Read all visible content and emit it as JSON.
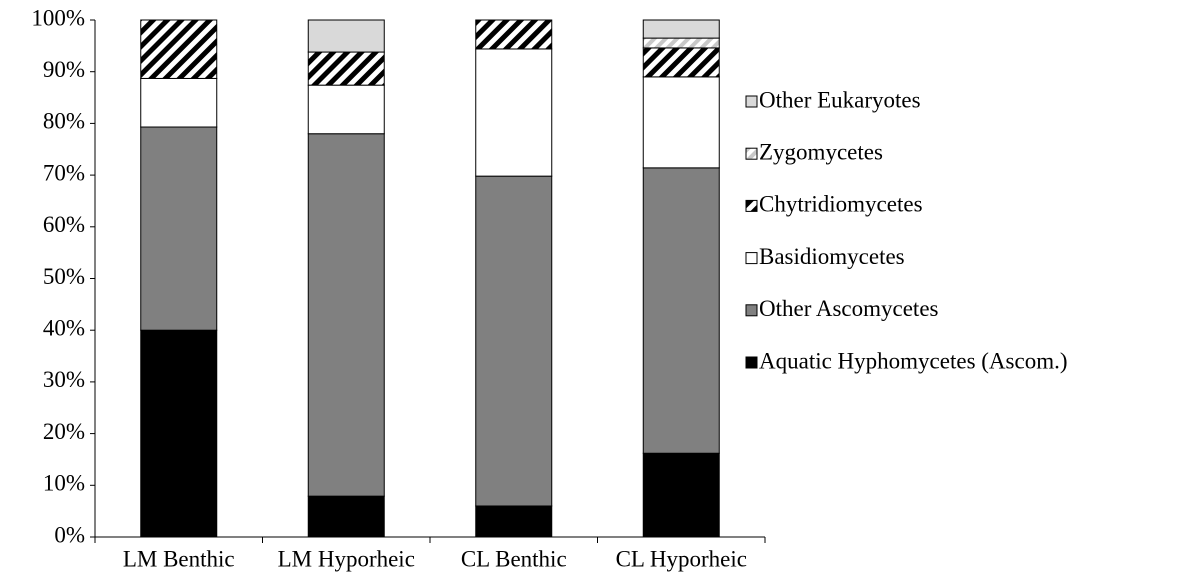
{
  "chart_data": {
    "type": "stacked_bar",
    "categories": [
      "LM Benthic",
      "LM Hyporheic",
      "CL Benthic",
      "CL Hyporheic"
    ],
    "series": [
      {
        "name": "Aquatic Hyphomycetes (Ascom.)",
        "color": "#000000",
        "values": [
          40,
          7.9,
          6,
          16.2
        ]
      },
      {
        "name": "Other Ascomycetes",
        "color": "#808080",
        "values": [
          39.3,
          70.1,
          63.8,
          55.2
        ]
      },
      {
        "name": "Basidiomycetes",
        "color": "#ffffff",
        "values": [
          9.4,
          9.4,
          24.6,
          17.6
        ]
      },
      {
        "name": "Chytridiomycetes",
        "color": "#000000",
        "pattern": "diagonal",
        "values": [
          11.3,
          6.4,
          5.6,
          5.6
        ]
      },
      {
        "name": "Zygomycetes",
        "color": "#c8c8c8",
        "pattern": "diagonal",
        "values": [
          0,
          0,
          0,
          1.9
        ]
      },
      {
        "name": "Other Eukaryotes",
        "color": "#d9d9d9",
        "values": [
          0,
          6.2,
          0,
          3.5
        ]
      }
    ],
    "ylim": [
      0,
      100
    ],
    "yticks": [
      {
        "value": 0,
        "label": "0%"
      },
      {
        "value": 10,
        "label": "10%"
      },
      {
        "value": 20,
        "label": "20%"
      },
      {
        "value": 30,
        "label": "30%"
      },
      {
        "value": 40,
        "label": "40%"
      },
      {
        "value": 50,
        "label": "50%"
      },
      {
        "value": 60,
        "label": "60%"
      },
      {
        "value": 70,
        "label": "70%"
      },
      {
        "value": 80,
        "label": "80%"
      },
      {
        "value": 90,
        "label": "90%"
      },
      {
        "value": 100,
        "label": "100%"
      }
    ],
    "grid": false,
    "legend": "right"
  }
}
